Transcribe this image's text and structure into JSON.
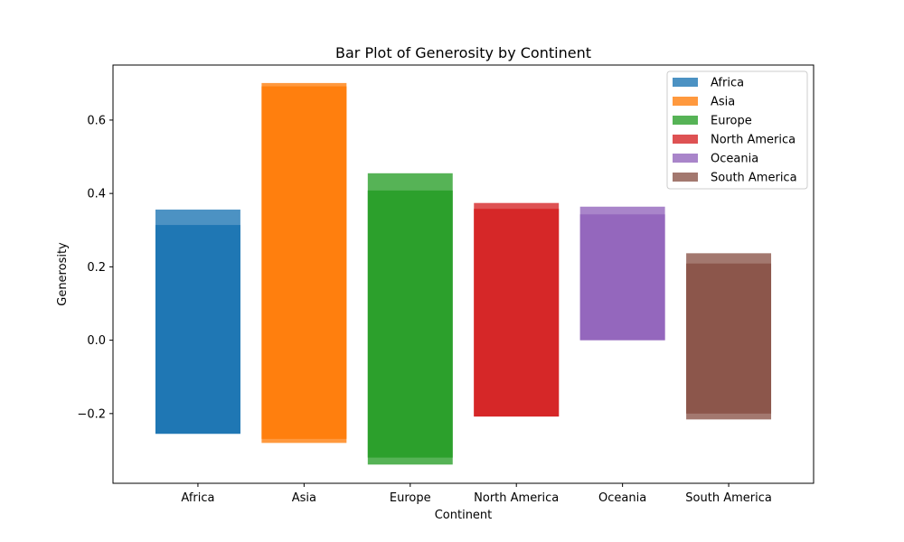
{
  "chart_data": {
    "type": "bar",
    "title": "Bar Plot of Generosity by Continent",
    "xlabel": "Continent",
    "ylabel": "Generosity",
    "ylim": [
      -0.39,
      0.75
    ],
    "yticks": [
      -0.2,
      0.0,
      0.2,
      0.4,
      0.6
    ],
    "ytick_labels": [
      "−0.2",
      "0.0",
      "0.2",
      "0.4",
      "0.6"
    ],
    "categories": [
      "Africa",
      "Asia",
      "Europe",
      "North America",
      "Oceania",
      "South America"
    ],
    "legend_position": "upper right",
    "grid": false,
    "series": [
      {
        "name": "Africa",
        "color": "#1f77b4",
        "min": -0.255,
        "max": 0.356,
        "inner_top": 0.314
      },
      {
        "name": "Asia",
        "color": "#ff7f0e",
        "min": -0.28,
        "max": 0.701,
        "inner_top": 0.692,
        "inner_bottom": -0.269
      },
      {
        "name": "Europe",
        "color": "#2ca02c",
        "min": -0.339,
        "max": 0.455,
        "inner_top": 0.408,
        "inner_bottom": -0.32
      },
      {
        "name": "North America",
        "color": "#d62728",
        "min": -0.208,
        "max": 0.374,
        "inner_top": 0.358
      },
      {
        "name": "Oceania",
        "color": "#9467bd",
        "min": 0.0,
        "max": 0.364,
        "inner_top": 0.343
      },
      {
        "name": "South America",
        "color": "#8c564b",
        "min": -0.216,
        "max": 0.237,
        "inner_top": 0.209,
        "inner_bottom": -0.2
      }
    ]
  }
}
